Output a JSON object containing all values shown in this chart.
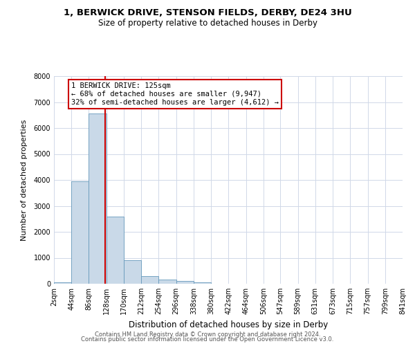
{
  "title_line1": "1, BERWICK DRIVE, STENSON FIELDS, DERBY, DE24 3HU",
  "title_line2": "Size of property relative to detached houses in Derby",
  "xlabel": "Distribution of detached houses by size in Derby",
  "ylabel": "Number of detached properties",
  "footer_line1": "Contains HM Land Registry data © Crown copyright and database right 2024.",
  "footer_line2": "Contains public sector information licensed under the Open Government Licence v3.0.",
  "bar_color": "#c9d9e8",
  "bar_edge_color": "#6699bb",
  "grid_color": "#d0d8e8",
  "vline_color": "#cc0000",
  "annotation_box_color": "#cc0000",
  "bin_edges": [
    2,
    44,
    86,
    128,
    170,
    212,
    254,
    296,
    338,
    380,
    422,
    464,
    506,
    547,
    589,
    631,
    673,
    715,
    757,
    799,
    841
  ],
  "bin_labels": [
    "2sqm",
    "44sqm",
    "86sqm",
    "128sqm",
    "170sqm",
    "212sqm",
    "254sqm",
    "296sqm",
    "338sqm",
    "380sqm",
    "422sqm",
    "464sqm",
    "506sqm",
    "547sqm",
    "589sqm",
    "631sqm",
    "673sqm",
    "715sqm",
    "757sqm",
    "799sqm",
    "841sqm"
  ],
  "bar_heights": [
    50,
    3950,
    6550,
    2600,
    900,
    300,
    150,
    100,
    60,
    0,
    0,
    0,
    0,
    0,
    0,
    0,
    0,
    0,
    0,
    0
  ],
  "ylim": [
    0,
    8000
  ],
  "yticks": [
    0,
    1000,
    2000,
    3000,
    4000,
    5000,
    6000,
    7000,
    8000
  ],
  "vline_x": 125,
  "annotation_text_line1": "1 BERWICK DRIVE: 125sqm",
  "annotation_text_line2": "← 68% of detached houses are smaller (9,947)",
  "annotation_text_line3": "32% of semi-detached houses are larger (4,612) →",
  "background_color": "#ffffff",
  "title1_fontsize": 9.5,
  "title2_fontsize": 8.5,
  "xlabel_fontsize": 8.5,
  "ylabel_fontsize": 8.0,
  "tick_fontsize": 7.0,
  "annot_fontsize": 7.5,
  "footer_fontsize": 6.0
}
